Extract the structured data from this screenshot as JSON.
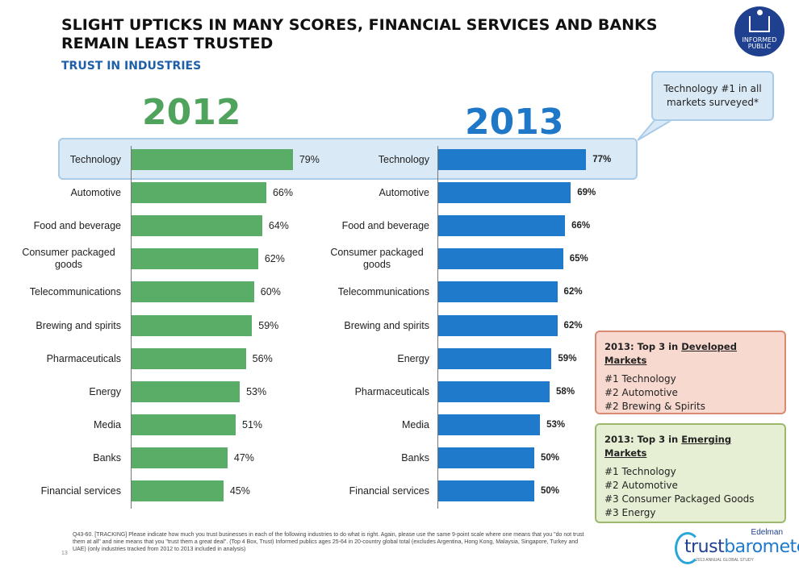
{
  "header": {
    "title": "SLIGHT UPTICKS IN MANY SCORES, FINANCIAL SERVICES AND BANKS REMAIN LEAST TRUSTED",
    "subtitle": "TRUST IN INDUSTRIES"
  },
  "badge": {
    "line1": "INFORMED",
    "line2": "PUBLIC"
  },
  "callout": {
    "text": "Technology #1 in all markets surveyed*"
  },
  "colors": {
    "bar_2012": "#5aad67",
    "bar_2013": "#1f7acb",
    "year_2012": "#4fa35d",
    "year_2013": "#1f77c8"
  },
  "chart_data": [
    {
      "type": "bar",
      "title": "2012",
      "orientation": "horizontal",
      "categories": [
        "Technology",
        "Automotive",
        "Food and beverage",
        "Consumer packaged goods",
        "Telecommunications",
        "Brewing and spirits",
        "Pharmaceuticals",
        "Energy",
        "Media",
        "Banks",
        "Financial services"
      ],
      "values": [
        79,
        66,
        64,
        62,
        60,
        59,
        56,
        53,
        51,
        47,
        45
      ],
      "labels": [
        "79%",
        "66%",
        "64%",
        "62%",
        "60%",
        "59%",
        "56%",
        "53%",
        "51%",
        "47%",
        "45%"
      ],
      "xlim": [
        0,
        100
      ]
    },
    {
      "type": "bar",
      "title": "2013",
      "orientation": "horizontal",
      "categories": [
        "Technology",
        "Automotive",
        "Food and beverage",
        "Consumer packaged goods",
        "Telecommunications",
        "Brewing and spirits",
        "Energy",
        "Pharmaceuticals",
        "Media",
        "Banks",
        "Financial services"
      ],
      "values": [
        77,
        69,
        66,
        65,
        62,
        62,
        59,
        58,
        53,
        50,
        50
      ],
      "labels": [
        "77%",
        "69%",
        "66%",
        "65%",
        "62%",
        "62%",
        "59%",
        "58%",
        "53%",
        "50%",
        "50%"
      ],
      "xlim": [
        0,
        100
      ]
    }
  ],
  "developed": {
    "prefix": "2013: Top 3 in ",
    "heading": "Developed Markets",
    "items": [
      "#1  Technology",
      "#2  Automotive",
      "#2 Brewing & Spirits"
    ]
  },
  "emerging": {
    "prefix": "2013: Top 3 in ",
    "heading": "Emerging Markets",
    "items": [
      "#1 Technology",
      "#2 Automotive",
      "#3 Consumer Packaged Goods",
      "#3 Energy"
    ]
  },
  "footer": {
    "page": "13",
    "note": "Q43-60. [TRACKING] Please indicate how much you trust businesses in each of the following industries to do what is right.  Again, please use the same 9-point scale where one means that you \"do not trust them at all\" and nine means that you \"trust them a great deal\". (Top 4 Box, Trust) Informed publics ages 25-64 in 20-country global total (excludes Argentina, Hong Kong, Malaysia, Singapore, Turkey and UAE) (only industries tracked from 2012 to 2013 included in analysis)"
  },
  "logo": {
    "edelman": "Edelman",
    "brand_a": "trust",
    "brand_b": "barometer",
    "tagline": "2013 ANNUAL GLOBAL STUDY"
  }
}
